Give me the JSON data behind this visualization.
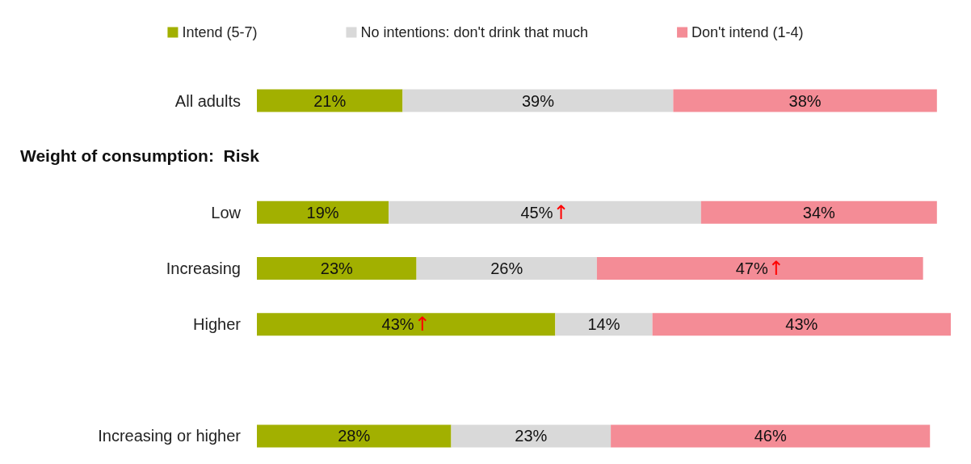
{
  "chart_data": {
    "type": "bar",
    "orientation": "horizontal",
    "stacked": true,
    "legend": "top",
    "categories": [
      "All adults",
      null,
      "Low",
      "Increasing",
      "Higher",
      null,
      "Increasing or higher"
    ],
    "annotations": [
      "Weight of consumption:  Risk"
    ],
    "series": [
      {
        "name": "Intend (5-7)",
        "color": "#a2b000",
        "values": [
          21,
          null,
          19,
          23,
          43,
          null,
          28
        ],
        "value_labels": [
          "21%",
          null,
          "19%",
          "23%",
          "43%↑",
          null,
          "28%"
        ]
      },
      {
        "name": "No intentions: don't drink that much",
        "color": "#d9d9d9",
        "values": [
          39,
          null,
          45,
          26,
          14,
          null,
          23
        ],
        "value_labels": [
          "39%",
          null,
          "45%↑",
          "26%",
          "14%",
          null,
          "23%"
        ]
      },
      {
        "name": "Don't intend (1-4)",
        "color": "#f48c96",
        "values": [
          38,
          null,
          34,
          47,
          43,
          null,
          46
        ],
        "value_labels": [
          "38%",
          null,
          "34%",
          "47%↑",
          "43%",
          null,
          "46%"
        ]
      }
    ]
  }
}
